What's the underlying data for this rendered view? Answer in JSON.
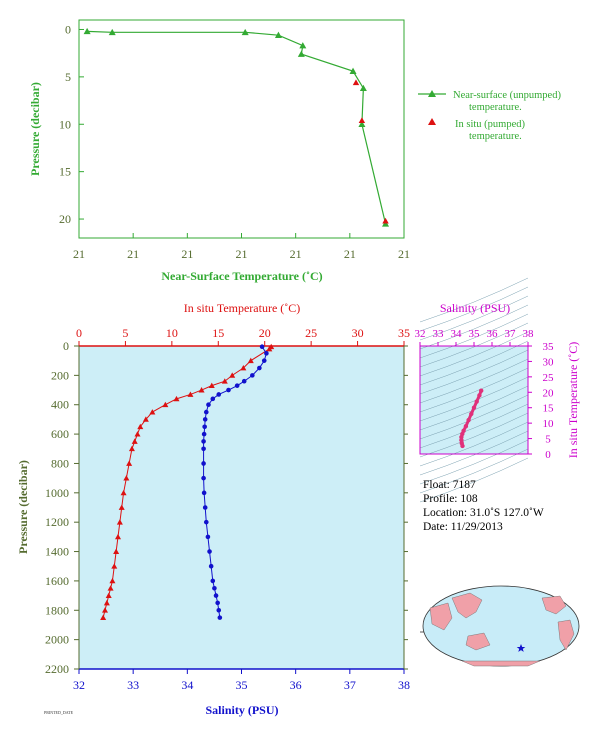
{
  "colors": {
    "green": "#33aa33",
    "tick_green": "#556b2f",
    "red": "#dd1111",
    "blue": "#1111cc",
    "magenta": "#cc00cc",
    "pink": "#e0307a",
    "panel_bg": "#cdeef7",
    "land": "#f0a0a8",
    "ocean": "#c8ecf8"
  },
  "top": {
    "xlabel": "Near-Surface Temperature (˚C)",
    "ylabel": "Pressure (decibar)",
    "xticks": [
      "21",
      "21",
      "21",
      "21",
      "21",
      "21",
      "21"
    ],
    "yticks": [
      "0",
      "5",
      "10",
      "15",
      "20"
    ],
    "legend": [
      {
        "label_line1": "Near-surface (unpumped)",
        "label_line2": "temperature.",
        "marker": "line-triangle"
      },
      {
        "label_line1": "In situ (pumped)",
        "label_line2": "temperature.",
        "marker": "red-triangle"
      }
    ]
  },
  "bottom": {
    "top_axis_label": "In situ Temperature (˚C)",
    "bottom_axis_label": "Salinity (PSU)",
    "ylabel": "Pressure (decibar)",
    "temp_ticks": [
      "0",
      "5",
      "10",
      "15",
      "20",
      "25",
      "30",
      "35"
    ],
    "sal_ticks": [
      "32",
      "33",
      "34",
      "35",
      "36",
      "37",
      "38"
    ],
    "pres_ticks": [
      "0",
      "200",
      "400",
      "600",
      "800",
      "1000",
      "1200",
      "1400",
      "1600",
      "1800",
      "2000",
      "2200"
    ],
    "footer_note": "PRINTED_DATE"
  },
  "ts": {
    "title": "Salinity (PSU)",
    "ylabel": "In situ Temperature (˚C)",
    "sal_ticks": [
      "32",
      "33",
      "34",
      "35",
      "36",
      "37",
      "38"
    ],
    "temp_ticks": [
      "0",
      "5",
      "10",
      "15",
      "20",
      "25",
      "30",
      "35"
    ]
  },
  "info": {
    "float": "Float:  7187",
    "profile": "Profile:  108",
    "location": "Location:  31.0˚S  127.0˚W",
    "date": "Date:  11/29/2013"
  },
  "chart_data": [
    {
      "type": "line",
      "title": "",
      "xlabel": "Near-Surface Temperature (˚C)",
      "ylabel": "Pressure (decibar)",
      "ylim": [
        22,
        -1
      ],
      "xlim": [
        21.0,
        21.22
      ],
      "series": [
        {
          "name": "Near-surface (unpumped) temperature.",
          "x": [
            21.0055,
            21.0225,
            21.1125,
            21.135,
            21.1515,
            21.1505,
            21.1855,
            21.1925,
            21.1915,
            21.2075
          ],
          "y": [
            0.2,
            0.3,
            0.3,
            0.6,
            1.7,
            2.6,
            4.4,
            6.2,
            10.0,
            20.5
          ]
        },
        {
          "name": "In situ (pumped) temperature.",
          "x": [
            21.1875,
            21.1915,
            21.2075
          ],
          "y": [
            5.6,
            9.6,
            20.2
          ]
        }
      ]
    },
    {
      "type": "scatter",
      "title": "",
      "ylabel": "Pressure (decibar)",
      "ylim": [
        2200,
        0
      ],
      "series": [
        {
          "name": "In situ Temperature (˚C)",
          "x": [
            20.7,
            20.5,
            18.5,
            17.7,
            16.5,
            15.7,
            14.3,
            13.2,
            12.0,
            10.5,
            9.3,
            7.9,
            7.2,
            6.6,
            6.3,
            6.0,
            5.7,
            5.4,
            5.1,
            4.8,
            4.6,
            4.4,
            4.2,
            4.0,
            3.8,
            3.6,
            3.4,
            3.2,
            3.0,
            2.8,
            2.6
          ],
          "y": [
            5,
            20,
            100,
            150,
            200,
            240,
            270,
            300,
            330,
            360,
            400,
            450,
            500,
            550,
            600,
            650,
            700,
            800,
            900,
            1000,
            1100,
            1200,
            1300,
            1400,
            1500,
            1600,
            1650,
            1700,
            1750,
            1800,
            1850
          ]
        },
        {
          "name": "Salinity (PSU)",
          "x": [
            35.38,
            35.46,
            35.42,
            35.33,
            35.2,
            35.05,
            34.92,
            34.76,
            34.58,
            34.47,
            34.39,
            34.35,
            34.33,
            34.32,
            34.31,
            34.3,
            34.3,
            34.3,
            34.3,
            34.31,
            34.33,
            34.35,
            34.38,
            34.41,
            34.44,
            34.47,
            34.5,
            34.53,
            34.56,
            34.58,
            34.6
          ],
          "y": [
            5,
            50,
            100,
            150,
            200,
            240,
            270,
            300,
            330,
            360,
            400,
            450,
            500,
            550,
            600,
            650,
            700,
            800,
            900,
            1000,
            1100,
            1200,
            1300,
            1400,
            1500,
            1600,
            1650,
            1700,
            1750,
            1800,
            1850
          ]
        }
      ]
    },
    {
      "type": "scatter",
      "title": "Salinity (PSU)",
      "xlabel": "Salinity (PSU)",
      "ylabel": "In situ Temperature (˚C)",
      "xlim": [
        32,
        38
      ],
      "ylim": [
        0,
        35
      ],
      "series": [
        {
          "name": "T-S",
          "x": [
            35.4,
            35.3,
            35.15,
            35.0,
            34.85,
            34.7,
            34.55,
            34.42,
            34.35,
            34.3,
            34.3,
            34.32,
            34.36
          ],
          "y": [
            20.5,
            19.0,
            17.0,
            15.0,
            13.0,
            11.0,
            9.0,
            7.5,
            6.5,
            5.5,
            4.5,
            3.5,
            2.6
          ]
        }
      ]
    }
  ]
}
